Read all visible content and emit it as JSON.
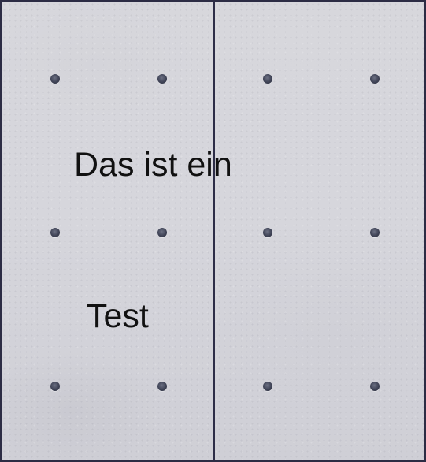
{
  "overlay": {
    "line_1": "Das ist ein",
    "line_2": "Test"
  },
  "colors": {
    "concrete": "#d6d6dc",
    "divider": "#2d2d47",
    "text": "#111111"
  }
}
